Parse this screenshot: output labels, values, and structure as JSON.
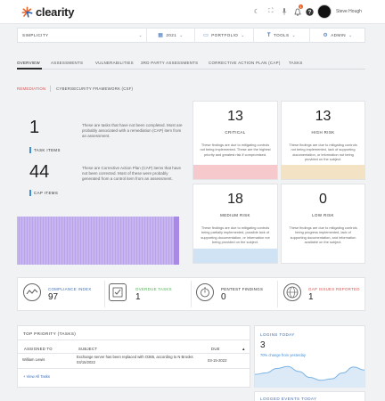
{
  "header": {
    "logo_text": "clearity",
    "notification_count": "1",
    "user_name": "Steve Hough",
    "icons": [
      "moon-icon",
      "fullscreen-icon",
      "microphone-icon",
      "bell-icon",
      "help-icon",
      "avatar"
    ]
  },
  "filters": {
    "company": "SIMPLICITY",
    "year": "2021",
    "portfolio": "PORTFOLIO",
    "tools": "TOOLS",
    "admin": "ADMIN"
  },
  "tabs": [
    "OVERVIEW",
    "ASSESSMENTS",
    "VULNERABILITIES",
    "3RD PARTY ASSESSMENTS",
    "CORRECTIVE ACTION PLAN (CAP)",
    "TASKS"
  ],
  "subtabs": [
    "REMEDIATION",
    "CYBERSECURITY FRAMEWORK (CSF)"
  ],
  "summary": {
    "tasks": {
      "count": "1",
      "label": "TASK ITEMS",
      "description": "These are tasks that have not been completed. Most are probably associated with a remediation (CAP) item from an assessment."
    },
    "caps": {
      "count": "44",
      "label": "CAP ITEMS",
      "description": "These are Corrective Action Plan (CAP) items that have not been corrected. Most of these were probably generated from a control item from an assessment."
    },
    "progress_fraction": 0.97
  },
  "risks": [
    {
      "count": "13",
      "label": "CRITICAL",
      "description": "These findings are due to mitigating controls not being implemented. These are the highest priority and greatest risk if compromised.",
      "color": "#f6c9cc"
    },
    {
      "count": "13",
      "label": "HIGH RISK",
      "description": "These findings are due to mitigating controls not being implemented, lack of supporting documentation, or information not being provided on the subject.",
      "color": "#f3e2c4"
    },
    {
      "count": "18",
      "label": "MEDIUM RISK",
      "description": "These findings are due to mitigating controls being partially implemented, possible lack of supporting documentation, or information not being provided on the subject.",
      "color": "#cfe3f5"
    },
    {
      "count": "0",
      "label": "LOW RISK",
      "description": "These findings are due to mitigating controls being progress implemented, lack of supporting documentation, and information available on the subject.",
      "color": "#ffffff"
    }
  ],
  "stats": [
    {
      "label": "COMPLIANCE INDEX",
      "value": "97",
      "color": "#3d6fb6",
      "icon": "gauge-icon"
    },
    {
      "label": "OVERDUE TASKS",
      "value": "1",
      "color": "#4caf50",
      "icon": "tasks-icon"
    },
    {
      "label": "PENTEST FINDINGS",
      "value": "0",
      "color": "#333333",
      "icon": "stopwatch-icon"
    },
    {
      "label": "GAP ISSUES REPORTED",
      "value": "1",
      "color": "#d9534f",
      "icon": "globe-icon"
    }
  ],
  "priority": {
    "title": "TOP PRIORITY (TASKS)",
    "columns": [
      "ASSIGNED TO",
      "SUBJECT",
      "DUE"
    ],
    "rows": [
      {
        "assigned": "William Lewis",
        "subject": "Exchange server has been replaced with O365, according to N Brooks 03/15/2022",
        "due": "03-15-2022"
      }
    ],
    "view_all": "+ View All Tasks"
  },
  "logins": {
    "title": "LOGINS TODAY",
    "value": "3",
    "change": "70% change from yesterday",
    "trend": [
      0.45,
      0.5,
      0.65,
      0.72,
      0.55,
      0.35,
      0.25,
      0.3,
      0.5,
      0.7,
      0.6
    ]
  },
  "logged_events": {
    "title": "LOGGED EVENTS TODAY"
  }
}
